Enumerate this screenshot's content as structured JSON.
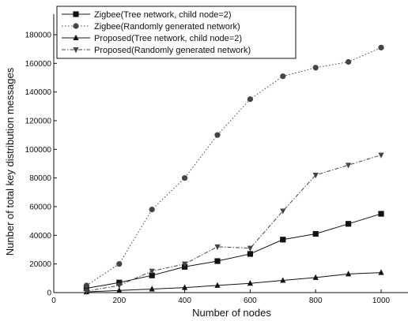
{
  "chart_data": {
    "type": "line",
    "xlabel": "Number of nodes",
    "ylabel": "Nunber of total key distribution messages",
    "xlim": [
      0,
      1000
    ],
    "ylim": [
      0,
      180000
    ],
    "x_ticks": [
      0,
      200,
      400,
      600,
      800,
      1000
    ],
    "y_ticks": [
      0,
      20000,
      40000,
      60000,
      80000,
      100000,
      120000,
      140000,
      160000,
      180000
    ],
    "legend_position": "top-left",
    "grid": false,
    "series": [
      {
        "name": "Zigbee(Tree network, child node=2)",
        "marker": "square",
        "line": "solid",
        "color": "#111111",
        "x": [
          100,
          200,
          300,
          400,
          500,
          600,
          700,
          800,
          900,
          1000
        ],
        "values": [
          3000,
          7000,
          12000,
          18000,
          22000,
          27000,
          37000,
          41000,
          48000,
          55000
        ]
      },
      {
        "name": "Zigbee(Randomly generated network)",
        "marker": "circle",
        "line": "dotted",
        "color": "#444444",
        "x": [
          100,
          200,
          300,
          400,
          500,
          600,
          700,
          800,
          900,
          1000
        ],
        "values": [
          5000,
          20000,
          58000,
          80000,
          110000,
          135000,
          151000,
          157000,
          161000,
          171000
        ]
      },
      {
        "name": "Proposed(Tree network, child node=2)",
        "marker": "triangle-up",
        "line": "solid",
        "color": "#111111",
        "x": [
          100,
          200,
          300,
          400,
          500,
          600,
          700,
          800,
          900,
          1000
        ],
        "values": [
          500,
          1500,
          2500,
          3500,
          5000,
          6500,
          8500,
          10500,
          13000,
          14000
        ]
      },
      {
        "name": "Proposed(Randomly generated network)",
        "marker": "triangle-down",
        "line": "dash-dot",
        "color": "#444444",
        "x": [
          100,
          200,
          300,
          400,
          500,
          600,
          700,
          800,
          900,
          1000
        ],
        "values": [
          1000,
          5000,
          15000,
          20000,
          32000,
          31000,
          57000,
          82000,
          89000,
          96000
        ]
      }
    ]
  }
}
